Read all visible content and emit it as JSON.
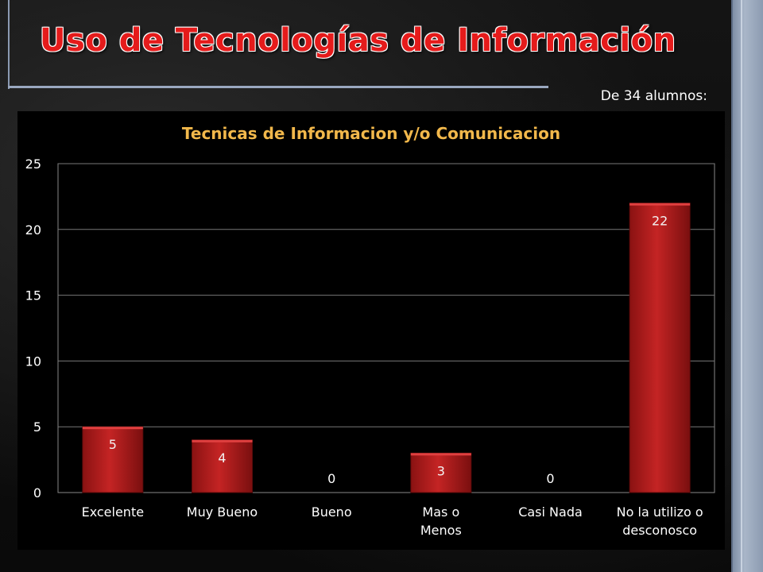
{
  "slide": {
    "title": "Uso de Tecnologías de Información",
    "subtitle": "De 34 alumnos:"
  },
  "colors": {
    "title": "#e51b1b",
    "chart_title": "#f2b84b",
    "bar": "#b31b1b"
  },
  "chart_data": {
    "type": "bar",
    "title": "Tecnicas de Informacion y/o Comunicacion",
    "categories": [
      "Excelente",
      "Muy Bueno",
      "Bueno",
      "Mas o Menos",
      "Casi Nada",
      "No la utilizo o desconosco"
    ],
    "category_lines": [
      [
        "Excelente"
      ],
      [
        "Muy Bueno"
      ],
      [
        "Bueno"
      ],
      [
        "Mas o",
        "Menos"
      ],
      [
        "Casi Nada"
      ],
      [
        "No la utilizo o",
        "desconosco"
      ]
    ],
    "values": [
      5,
      4,
      0,
      3,
      0,
      22
    ],
    "ylim": [
      0,
      25
    ],
    "yticks": [
      0,
      5,
      10,
      15,
      20,
      25
    ],
    "grid": true,
    "legend": "none"
  }
}
